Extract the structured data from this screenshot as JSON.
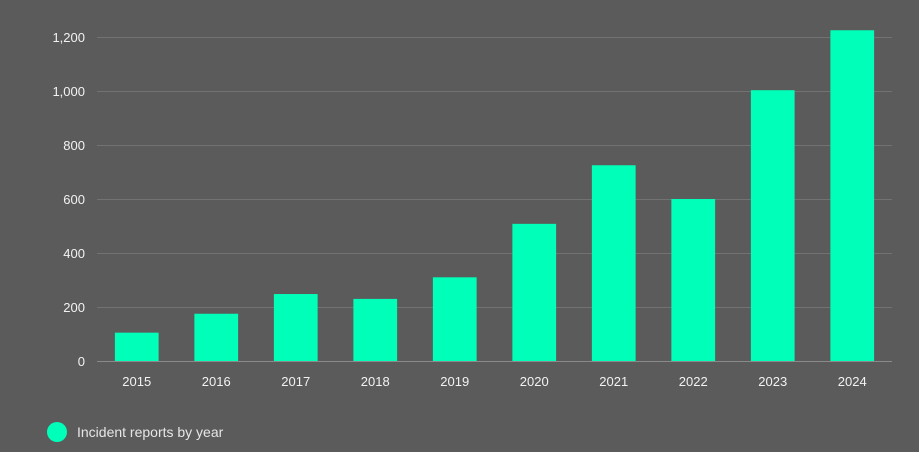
{
  "chart_data": {
    "type": "bar",
    "title": "",
    "xlabel": "",
    "ylabel": "",
    "categories": [
      "2015",
      "2016",
      "2017",
      "2018",
      "2019",
      "2020",
      "2021",
      "2022",
      "2023",
      "2024"
    ],
    "series": [
      {
        "name": "Incident reports by year",
        "values": [
          105,
          175,
          248,
          230,
          310,
          508,
          725,
          600,
          1003,
          1225
        ],
        "color": "#00ffb8"
      }
    ],
    "ylim": [
      0,
      1300
    ],
    "yticks": [
      0,
      200,
      400,
      600,
      800,
      1000,
      1200
    ],
    "ytick_labels": [
      "0",
      "200",
      "400",
      "600",
      "800",
      "1,000",
      "1,200"
    ],
    "grid": true,
    "legend_position": "bottom-left"
  },
  "colors": {
    "background": "#5b5b5b",
    "grid": "#727272",
    "text": "#f2f2f2",
    "bar": "#00ffb8"
  }
}
